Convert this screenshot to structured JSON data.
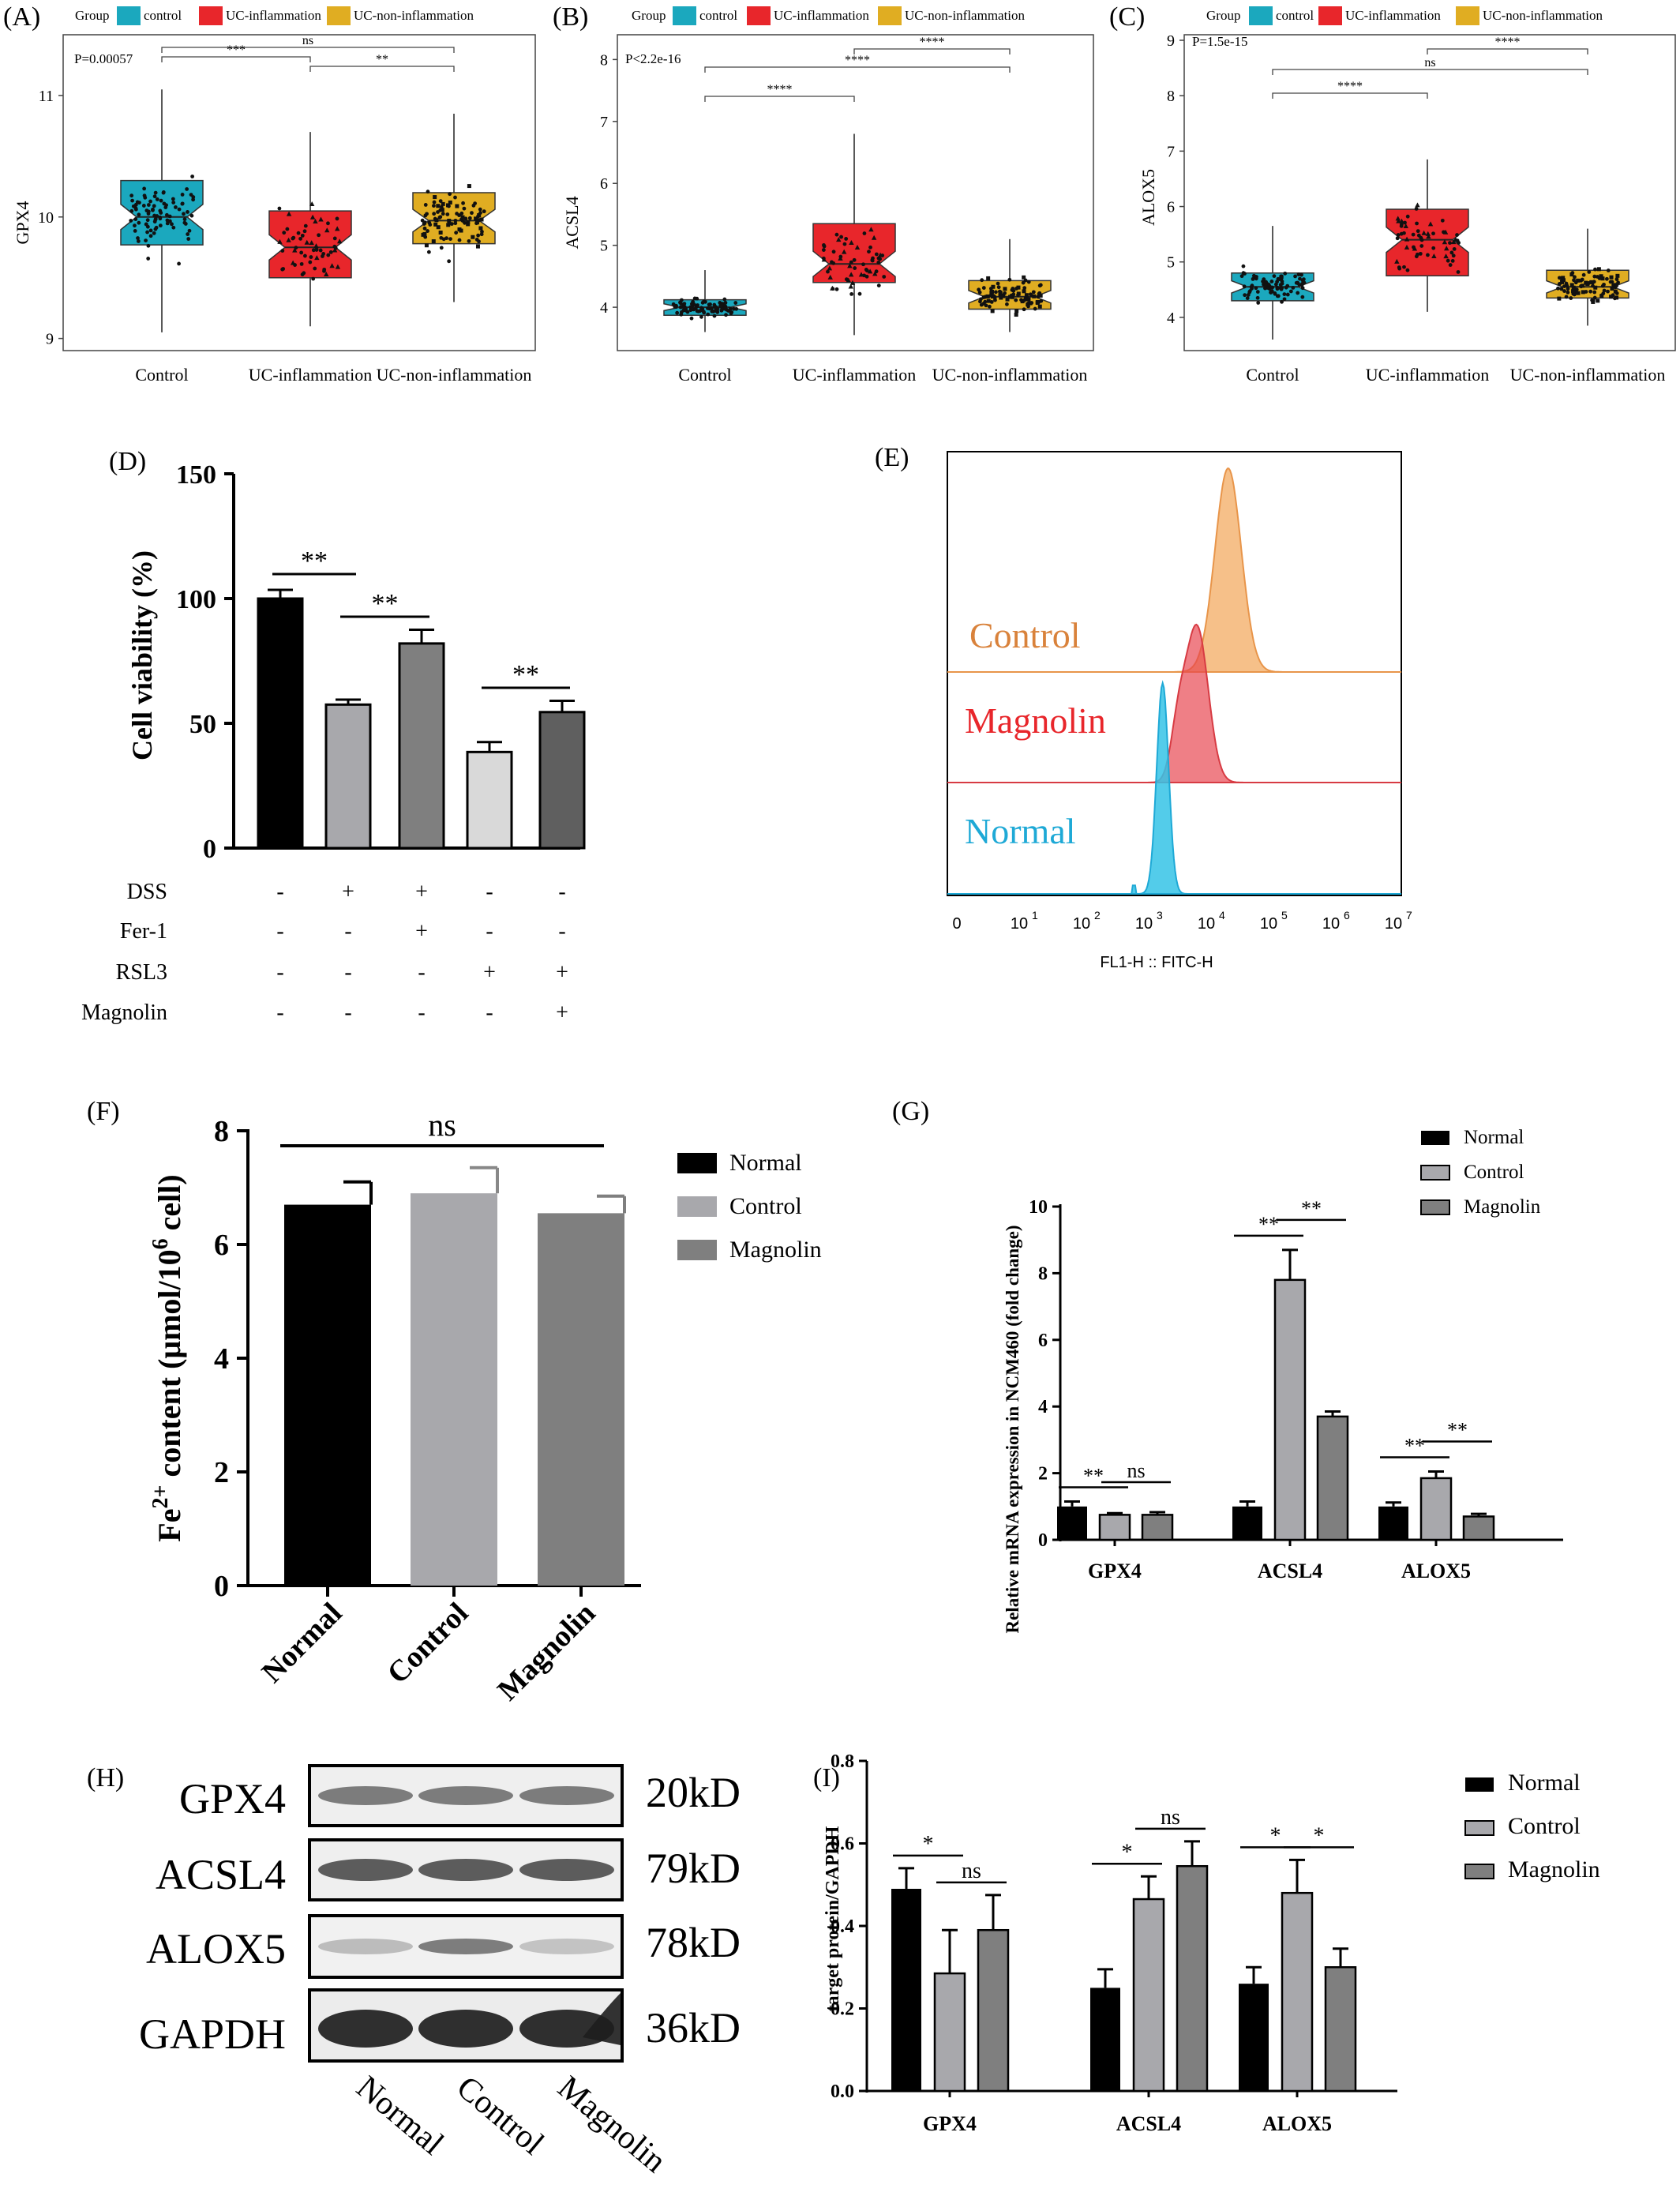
{
  "colors": {
    "control_teal": "#1ba8be",
    "uc_inflammation_red": "#e8262b",
    "uc_noninflammation_gold": "#e0ad22",
    "bar_black": "#000000",
    "bar_light_gray": "#a8a8ac",
    "bar_mid_gray": "#7f7f7f",
    "bar_lighter_gray": "#d9d9d9",
    "bar_dark_gray": "#5f5f5f",
    "flow_control": "#f2a85b",
    "flow_magnolin": "#e8434c",
    "flow_normal": "#35c3e6"
  },
  "chart_data": [
    {
      "panel": "(A)",
      "type": "box",
      "legend_title": "Group",
      "legend": [
        "control",
        "UC-inflammation",
        "UC-non-inflammation"
      ],
      "pvalue": "P=0.00057",
      "ylabel": "GPX4",
      "ylim": [
        8.9,
        11.5
      ],
      "yticks": [
        "9",
        "10",
        "11"
      ],
      "categories": [
        "Control",
        "UC-inflammation",
        "UC-non-inflammation"
      ],
      "boxes": [
        {
          "q1": 9.77,
          "median": 10.0,
          "q3": 10.3,
          "whisker_low": 9.05,
          "whisker_high": 11.05
        },
        {
          "q1": 9.5,
          "median": 9.75,
          "q3": 10.05,
          "whisker_low": 9.1,
          "whisker_high": 10.7
        },
        {
          "q1": 9.78,
          "median": 9.97,
          "q3": 10.2,
          "whisker_low": 9.3,
          "whisker_high": 10.85
        }
      ],
      "comparisons": [
        {
          "from": 0,
          "to": 2,
          "label": "ns"
        },
        {
          "from": 0,
          "to": 1,
          "label": "***"
        },
        {
          "from": 1,
          "to": 2,
          "label": "**"
        }
      ]
    },
    {
      "panel": "(B)",
      "type": "box",
      "legend_title": "Group",
      "legend": [
        "control",
        "UC-inflammation",
        "UC-non-inflammation"
      ],
      "pvalue": "P<2.2e-16",
      "ylabel": "ACSL4",
      "ylim": [
        3.3,
        8.4
      ],
      "yticks": [
        "4",
        "5",
        "6",
        "7",
        "8"
      ],
      "categories": [
        "Control",
        "UC-inflammation",
        "UC-non-inflammation"
      ],
      "boxes": [
        {
          "q1": 3.87,
          "median": 4.0,
          "q3": 4.12,
          "whisker_low": 3.6,
          "whisker_high": 4.6
        },
        {
          "q1": 4.4,
          "median": 4.7,
          "q3": 5.35,
          "whisker_low": 3.55,
          "whisker_high": 6.8
        },
        {
          "q1": 3.97,
          "median": 4.17,
          "q3": 4.43,
          "whisker_low": 3.6,
          "whisker_high": 5.1
        }
      ],
      "comparisons": [
        {
          "from": 1,
          "to": 2,
          "label": "****"
        },
        {
          "from": 0,
          "to": 2,
          "label": "****"
        },
        {
          "from": 0,
          "to": 1,
          "label": "****"
        }
      ]
    },
    {
      "panel": "(C)",
      "type": "box",
      "legend_title": "Group",
      "legend": [
        "control",
        "UC-inflammation",
        "UC-non-inflammation"
      ],
      "pvalue": "P=1.5e-15",
      "ylabel": "ALOX5",
      "ylim": [
        3.4,
        9.1
      ],
      "yticks": [
        "4",
        "5",
        "6",
        "7",
        "8",
        "9"
      ],
      "categories": [
        "Control",
        "UC-inflammation",
        "UC-non-inflammation"
      ],
      "boxes": [
        {
          "q1": 4.3,
          "median": 4.55,
          "q3": 4.8,
          "whisker_low": 3.6,
          "whisker_high": 5.65
        },
        {
          "q1": 4.75,
          "median": 5.4,
          "q3": 5.95,
          "whisker_low": 4.1,
          "whisker_high": 6.85
        },
        {
          "q1": 4.35,
          "median": 4.55,
          "q3": 4.85,
          "whisker_low": 3.85,
          "whisker_high": 5.6
        }
      ],
      "comparisons": [
        {
          "from": 1,
          "to": 2,
          "label": "****"
        },
        {
          "from": 0,
          "to": 2,
          "label": "ns"
        },
        {
          "from": 0,
          "to": 1,
          "label": "****"
        }
      ]
    },
    {
      "panel": "(D)",
      "type": "bar",
      "ylabel": "Cell viability (%)",
      "ylim": [
        0,
        150
      ],
      "yticks": [
        "0",
        "50",
        "100",
        "150"
      ],
      "values": [
        100,
        57.5,
        82,
        38.5,
        54.5
      ],
      "errors": [
        3.5,
        2,
        5.5,
        4,
        4.5
      ],
      "conditions": [
        {
          "name": "DSS",
          "marks": [
            "-",
            "+",
            "+",
            "-",
            "-"
          ]
        },
        {
          "name": "Fer-1",
          "marks": [
            "-",
            "-",
            "+",
            "-",
            "-"
          ]
        },
        {
          "name": "RSL3",
          "marks": [
            "-",
            "-",
            "-",
            "+",
            "+"
          ]
        },
        {
          "name": "Magnolin",
          "marks": [
            "-",
            "-",
            "-",
            "-",
            "+"
          ]
        }
      ],
      "comparisons": [
        {
          "from": 0,
          "to": 1,
          "label": "**"
        },
        {
          "from": 1,
          "to": 2,
          "label": "**"
        },
        {
          "from": 3,
          "to": 4,
          "label": "**"
        }
      ]
    },
    {
      "panel": "(E)",
      "type": "histogram",
      "xlabel": "FL1-H :: FITC-H",
      "xtick_labels": [
        "0",
        "10",
        "10",
        "10",
        "10",
        "10",
        "10",
        "10"
      ],
      "xtick_exponents": [
        "",
        "1",
        "2",
        "3",
        "4",
        "5",
        "6",
        "7"
      ],
      "series": [
        {
          "name": "Control",
          "peak_log10": 4.35
        },
        {
          "name": "Magnolin",
          "peak_log10": 3.85
        },
        {
          "name": "Normal",
          "peak_log10": 3.3
        }
      ]
    },
    {
      "panel": "(F)",
      "type": "bar",
      "ylabel_main": "Fe",
      "ylabel_sup1": "2+",
      "ylabel_mid": " content  (μmol/10",
      "ylabel_sup2": "6",
      "ylabel_end": " cell)",
      "ylim": [
        0,
        8
      ],
      "yticks": [
        "0",
        "2",
        "4",
        "6",
        "8"
      ],
      "categories": [
        "Normal",
        "Control",
        "Magnolin"
      ],
      "values": [
        6.7,
        6.9,
        6.55
      ],
      "errors": [
        0.4,
        0.45,
        0.3
      ],
      "significance": "ns",
      "legend": [
        "Normal",
        "Control",
        "Magnolin"
      ]
    },
    {
      "panel": "(G)",
      "type": "bar",
      "ylabel": "Relative mRNA expression in NCM460 (fold change)",
      "ylim": [
        0,
        10
      ],
      "yticks": [
        "0",
        "2",
        "4",
        "6",
        "8",
        "10"
      ],
      "categories": [
        "GPX4",
        "ACSL4",
        "ALOX5"
      ],
      "series": [
        {
          "name": "Normal",
          "values": [
            1.0,
            1.0,
            1.0
          ],
          "errors": [
            0.15,
            0.15,
            0.12
          ]
        },
        {
          "name": "Control",
          "values": [
            0.75,
            7.8,
            1.85
          ],
          "errors": [
            0.05,
            0.9,
            0.2
          ]
        },
        {
          "name": "Magnolin",
          "values": [
            0.75,
            3.7,
            0.7
          ],
          "errors": [
            0.08,
            0.15,
            0.08
          ]
        }
      ],
      "comparisons": [
        {
          "group": 0,
          "from": 0,
          "to": 1,
          "label": "**"
        },
        {
          "group": 0,
          "from": 1,
          "to": 2,
          "label": "ns"
        },
        {
          "group": 1,
          "from": 0,
          "to": 1,
          "label": "**"
        },
        {
          "group": 1,
          "from": 1,
          "to": 2,
          "label": "**"
        },
        {
          "group": 2,
          "from": 0,
          "to": 1,
          "label": "**"
        },
        {
          "group": 2,
          "from": 1,
          "to": 2,
          "label": "**"
        }
      ]
    },
    {
      "panel": "(H)",
      "type": "blot",
      "rows": [
        {
          "protein": "GPX4",
          "size": "20kD"
        },
        {
          "protein": "ACSL4",
          "size": "79kD"
        },
        {
          "protein": "ALOX5",
          "size": "78kD"
        },
        {
          "protein": "GAPDH",
          "size": "36kD"
        }
      ],
      "lanes": [
        "Normal",
        "Control",
        "Magnolin"
      ]
    },
    {
      "panel": "(I)",
      "type": "bar",
      "ylabel": "target protein/GAPDH",
      "ylim": [
        0,
        0.8
      ],
      "yticks": [
        "0.0",
        "0.2",
        "0.4",
        "0.6",
        "0.8"
      ],
      "categories": [
        "GPX4",
        "ACSL4",
        "ALOX5"
      ],
      "series": [
        {
          "name": "Normal",
          "values": [
            0.49,
            0.25,
            0.26
          ],
          "errors": [
            0.05,
            0.045,
            0.04
          ]
        },
        {
          "name": "Control",
          "values": [
            0.285,
            0.465,
            0.48
          ],
          "errors": [
            0.105,
            0.055,
            0.08
          ]
        },
        {
          "name": "Magnolin",
          "values": [
            0.39,
            0.545,
            0.3
          ],
          "errors": [
            0.085,
            0.06,
            0.045
          ]
        }
      ],
      "comparisons": [
        {
          "group": 0,
          "from": 0,
          "to": 1,
          "label": "*"
        },
        {
          "group": 0,
          "from": 1,
          "to": 2,
          "label": "ns"
        },
        {
          "group": 1,
          "from": 0,
          "to": 1,
          "label": "*"
        },
        {
          "group": 1,
          "from": 1,
          "to": 2,
          "label": "ns"
        },
        {
          "group": 2,
          "from": 0,
          "to": 1,
          "label": "*"
        },
        {
          "group": 2,
          "from": 1,
          "to": 2,
          "label": "*"
        }
      ]
    }
  ]
}
